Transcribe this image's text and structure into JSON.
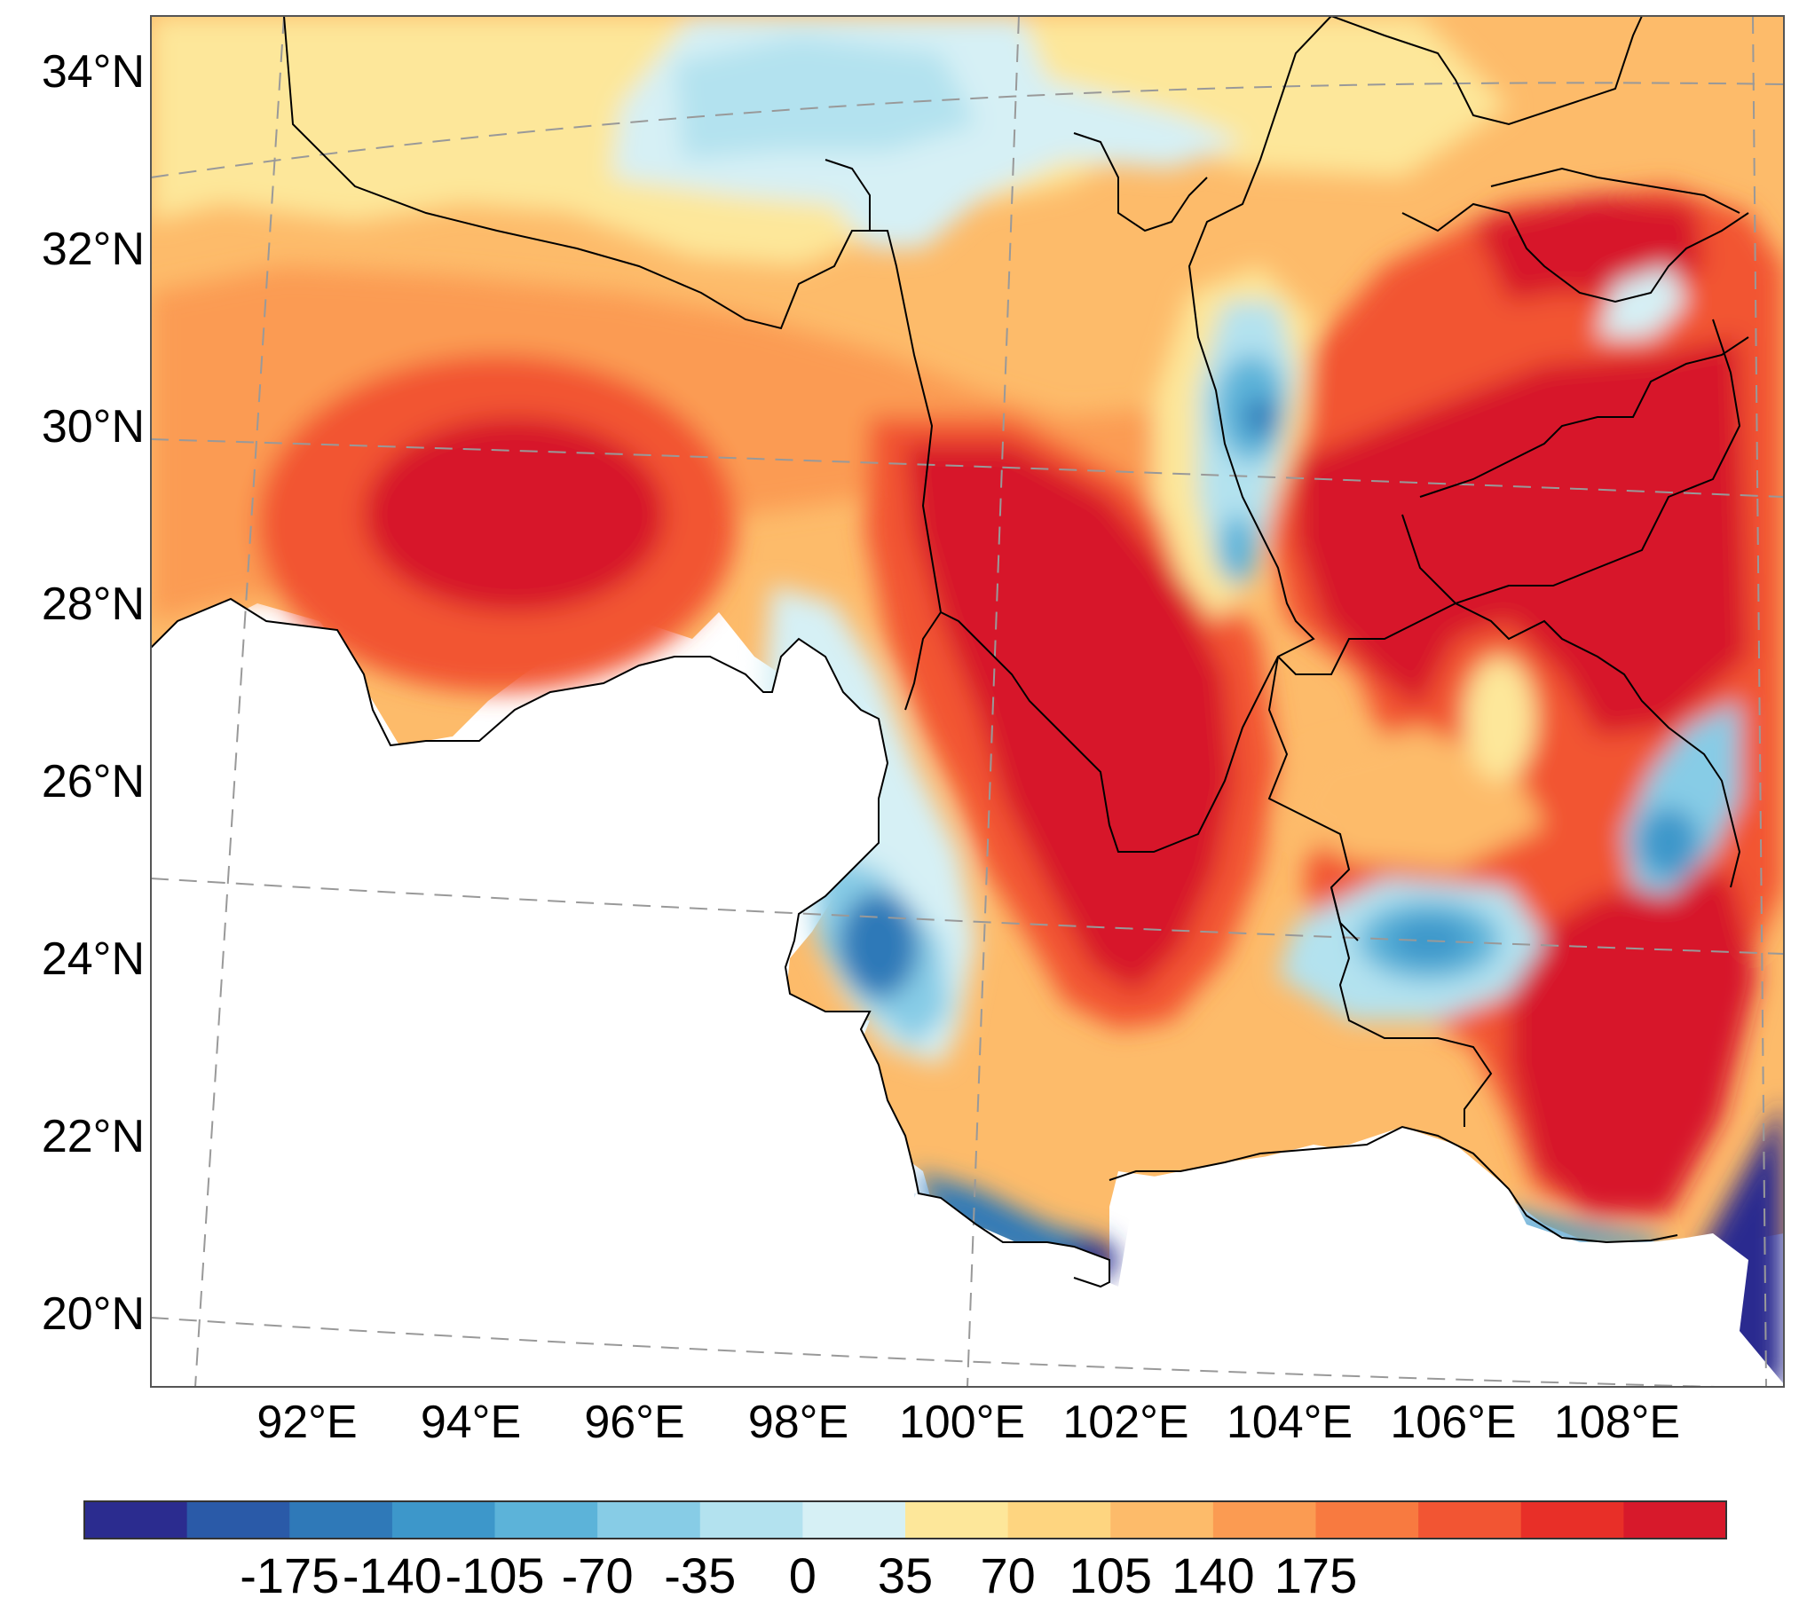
{
  "map": {
    "lat_labels": [
      "34°N",
      "32°N",
      "30°N",
      "28°N",
      "26°N",
      "24°N",
      "22°N",
      "20°N"
    ],
    "lon_labels": [
      "92°E",
      "94°E",
      "96°E",
      "98°E",
      "100°E",
      "102°E",
      "104°E",
      "106°E",
      "108°E"
    ],
    "no_data_color": "#ffffff",
    "boundary_color": "#000000",
    "gridline_color": "#999999"
  },
  "colorbar": {
    "tick_labels": [
      "-175",
      "-140",
      "-105",
      "-70",
      "-35",
      "0",
      "35",
      "70",
      "105",
      "140",
      "175"
    ],
    "colors": [
      "#2b2c8f",
      "#2a5aa8",
      "#2f79b8",
      "#3d97ca",
      "#5cb3d9",
      "#87cce6",
      "#b3e2ef",
      "#d6f0f5",
      "#fde79a",
      "#fed580",
      "#fdbb6a",
      "#fb9b52",
      "#f87a40",
      "#f25533",
      "#e82f28",
      "#d7192b"
    ]
  }
}
